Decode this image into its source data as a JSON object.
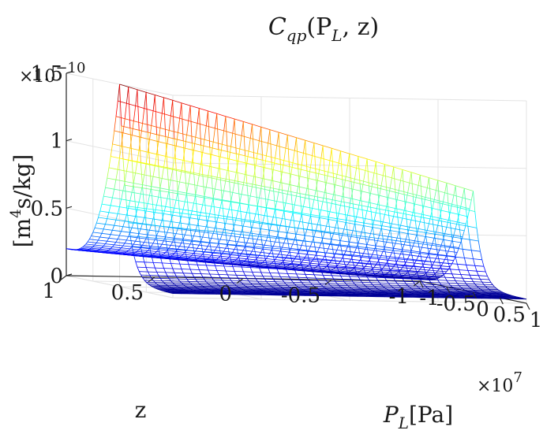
{
  "chart_data": {
    "type": "surface",
    "title": "C_qp(P_L, z)",
    "title_parts": {
      "base": "C",
      "sub": "qp",
      "args": "(P",
      "args_sub": "L",
      "args_end": ", z)"
    },
    "zlabel": "[m4s/kg]",
    "zlabel_parts": {
      "pre": "[m",
      "sup": "4",
      "post": "s/kg]"
    },
    "xlabel": "P_L[Pa]",
    "xlabel_parts": {
      "base": "P",
      "sub": "L",
      "post": "[Pa]"
    },
    "ylabel": "z",
    "x_range": [
      -1,
      1
    ],
    "y_range": [
      -1,
      1
    ],
    "z_range": [
      0,
      1.5
    ],
    "x_ticks": [
      "-1",
      "-0.5",
      "0",
      "0.5",
      "1"
    ],
    "y_ticks": [
      "-1",
      "-0.5",
      "0",
      "0.5",
      "1"
    ],
    "z_ticks": [
      "0",
      "0.5",
      "1",
      "1.5"
    ],
    "x_exponent": "×10^7",
    "x_exponent_parts": {
      "base": "×10",
      "sup": "7"
    },
    "z_exponent": "×10^-10",
    "z_exponent_parts": {
      "base": "×10",
      "sup": "−10"
    },
    "colormap": "jet",
    "grid": true,
    "peak_primary": {
      "x": 0,
      "y": 1,
      "z": 1.5
    },
    "peak_secondary": {
      "x": 0,
      "y": -1,
      "z": 0.75
    },
    "edge_value_x_minus1_y1": 0.2,
    "edge_value_x_plus1": 0.03
  }
}
